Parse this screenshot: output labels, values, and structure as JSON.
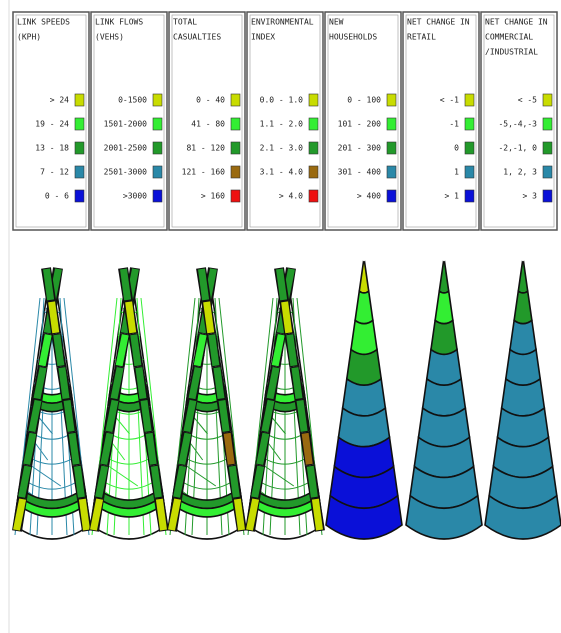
{
  "panels": [
    {
      "title": [
        "LINK SPEEDS",
        "(KPH)"
      ],
      "rows": [
        {
          "label": "> 24",
          "color": "#c8dc00"
        },
        {
          "label": "19 - 24",
          "color": "#33ee33"
        },
        {
          "label": "13 - 18",
          "color": "#22992a"
        },
        {
          "label": "7 - 12",
          "color": "#2a88a8"
        },
        {
          "label": "0 - 6",
          "color": "#0a10d8"
        }
      ]
    },
    {
      "title": [
        "LINK FLOWS",
        "(VEHS)"
      ],
      "rows": [
        {
          "label": "0-1500",
          "color": "#c8dc00"
        },
        {
          "label": "1501-2000",
          "color": "#33ee33"
        },
        {
          "label": "2001-2500",
          "color": "#22992a"
        },
        {
          "label": "2501-3000",
          "color": "#2a88a8"
        },
        {
          "label": ">3000",
          "color": "#0a10d8"
        }
      ]
    },
    {
      "title": [
        "TOTAL",
        "CASUALTIES"
      ],
      "rows": [
        {
          "label": "0 - 40",
          "color": "#c8dc00"
        },
        {
          "label": "41 - 80",
          "color": "#33ee33"
        },
        {
          "label": "81 - 120",
          "color": "#22992a"
        },
        {
          "label": "121 - 160",
          "color": "#9a6a10"
        },
        {
          "label": "> 160",
          "color": "#ee1010"
        }
      ]
    },
    {
      "title": [
        "ENVIRONMENTAL",
        "INDEX"
      ],
      "rows": [
        {
          "label": "0.0 - 1.0",
          "color": "#c8dc00"
        },
        {
          "label": "1.1 - 2.0",
          "color": "#33ee33"
        },
        {
          "label": "2.1 - 3.0",
          "color": "#22992a"
        },
        {
          "label": "3.1 - 4.0",
          "color": "#9a6a10"
        },
        {
          "label": "> 4.0",
          "color": "#ee1010"
        }
      ]
    },
    {
      "title": [
        "NEW",
        "HOUSEHOLDS"
      ],
      "rows": [
        {
          "label": "0 - 100",
          "color": "#c8dc00"
        },
        {
          "label": "101 - 200",
          "color": "#33ee33"
        },
        {
          "label": "201 - 300",
          "color": "#22992a"
        },
        {
          "label": "301 - 400",
          "color": "#2a88a8"
        },
        {
          "label": "> 400",
          "color": "#0a10d8"
        }
      ]
    },
    {
      "title": [
        "NET CHANGE IN",
        "RETAIL"
      ],
      "rows": [
        {
          "label": "< -1",
          "color": "#c8dc00"
        },
        {
          "label": "-1",
          "color": "#33ee33"
        },
        {
          "label": "0",
          "color": "#22992a"
        },
        {
          "label": "1",
          "color": "#2a88a8"
        },
        {
          "label": "> 1",
          "color": "#0a10d8"
        }
      ]
    },
    {
      "title": [
        "NET CHANGE IN",
        "COMMERCIAL",
        "/INDUSTRIAL"
      ],
      "rows": [
        {
          "label": "< -5",
          "color": "#c8dc00"
        },
        {
          "label": "-5,-4,-3",
          "color": "#33ee33"
        },
        {
          "label": "-2,-1, 0",
          "color": "#22992a"
        },
        {
          "label": "1, 2, 3",
          "color": "#2a88a8"
        },
        {
          "label": "> 3",
          "color": "#0a10d8"
        }
      ]
    }
  ]
}
